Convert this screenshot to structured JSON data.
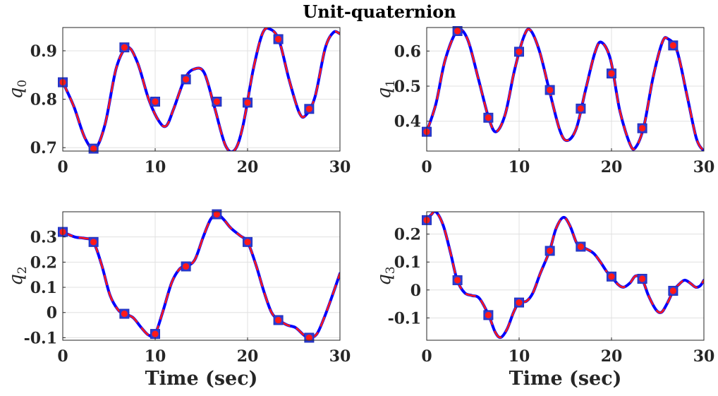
{
  "figure": {
    "title": "Unit-quaternion"
  },
  "colors": {
    "solid": "#0000ff",
    "dashed": "#ff1a1a",
    "marker_edge": "#2b3bd6",
    "marker_fill": "#ff1a1a",
    "grid": "#e0e0e0",
    "axis": "#262626"
  },
  "chart_data": [
    {
      "type": "line",
      "ylabel": "q",
      "ylabel_sub": "0",
      "xlabel": "",
      "xlim": [
        0,
        30
      ],
      "ylim": [
        0.693,
        0.948
      ],
      "xticks": [
        0,
        10,
        20,
        30
      ],
      "xtick_labels": [
        "0",
        "10",
        "20",
        "30"
      ],
      "yticks": [
        0.7,
        0.8,
        0.9
      ],
      "ytick_labels": [
        "0.7",
        "0.8",
        "0.9"
      ],
      "grid": true,
      "curve_x": [
        0,
        1.2,
        2.4,
        3.5,
        4.6,
        5.8,
        7.0,
        8.1,
        9.3,
        10.4,
        11.2,
        12.0,
        13.2,
        14.2,
        15.3,
        16.4,
        17.6,
        18.6,
        19.5,
        20.6,
        21.6,
        22.4,
        23.4,
        24.5,
        25.6,
        26.3,
        27.3,
        28.4,
        29.3,
        30
      ],
      "curve_y": [
        0.835,
        0.785,
        0.72,
        0.698,
        0.75,
        0.865,
        0.907,
        0.875,
        0.8,
        0.755,
        0.745,
        0.78,
        0.842,
        0.862,
        0.855,
        0.785,
        0.705,
        0.695,
        0.745,
        0.86,
        0.935,
        0.945,
        0.922,
        0.84,
        0.772,
        0.767,
        0.805,
        0.905,
        0.938,
        0.935
      ],
      "marker_x": [
        0,
        3.33,
        6.67,
        10,
        13.33,
        16.67,
        20,
        23.33,
        26.67
      ],
      "marker_y": [
        0.835,
        0.698,
        0.907,
        0.795,
        0.841,
        0.795,
        0.793,
        0.924,
        0.78
      ]
    },
    {
      "type": "line",
      "ylabel": "q",
      "ylabel_sub": "1",
      "xlabel": "",
      "xlim": [
        0,
        30
      ],
      "ylim": [
        0.315,
        0.667
      ],
      "xticks": [
        0,
        10,
        20,
        30
      ],
      "xtick_labels": [
        "0",
        "10",
        "20",
        "30"
      ],
      "yticks": [
        0.4,
        0.5,
        0.6
      ],
      "ytick_labels": [
        "0.4",
        "0.5",
        "0.6"
      ],
      "grid": true,
      "curve_x": [
        0,
        1.0,
        2.0,
        3.3,
        4.4,
        5.6,
        6.7,
        7.5,
        8.5,
        9.5,
        10.5,
        11.2,
        12.2,
        13.3,
        14.4,
        15.2,
        16.2,
        17.2,
        18.2,
        18.9,
        19.9,
        20.9,
        22.0,
        22.6,
        23.5,
        24.5,
        25.5,
        26.1,
        27.1,
        28.2,
        29.2,
        30
      ],
      "curve_y": [
        0.37,
        0.45,
        0.575,
        0.657,
        0.635,
        0.52,
        0.41,
        0.37,
        0.42,
        0.545,
        0.64,
        0.66,
        0.6,
        0.485,
        0.375,
        0.345,
        0.38,
        0.49,
        0.595,
        0.625,
        0.575,
        0.43,
        0.335,
        0.325,
        0.385,
        0.525,
        0.625,
        0.635,
        0.6,
        0.47,
        0.35,
        0.315
      ],
      "marker_x": [
        0,
        3.33,
        6.67,
        10,
        13.33,
        16.67,
        20,
        23.33,
        26.67
      ],
      "marker_y": [
        0.37,
        0.657,
        0.41,
        0.598,
        0.489,
        0.436,
        0.536,
        0.38,
        0.616
      ]
    },
    {
      "type": "line",
      "ylabel": "q",
      "ylabel_sub": "2",
      "xlabel": "Time (sec)",
      "xlim": [
        0,
        30
      ],
      "ylim": [
        -0.11,
        0.4
      ],
      "xticks": [
        0,
        10,
        20,
        30
      ],
      "xtick_labels": [
        "0",
        "10",
        "20",
        "30"
      ],
      "yticks": [
        -0.1,
        0,
        0.1,
        0.2,
        0.3
      ],
      "ytick_labels": [
        "-0.1",
        "0",
        "0.1",
        "0.2",
        "0.3"
      ],
      "grid": true,
      "curve_x": [
        0,
        1.3,
        2.3,
        3.3,
        4.2,
        5.1,
        6.0,
        6.7,
        7.6,
        8.5,
        9.3,
        10.0,
        10.8,
        11.8,
        12.7,
        13.4,
        14.3,
        15.2,
        16.0,
        16.7,
        17.4,
        18.2,
        19.2,
        20.0,
        20.9,
        21.8,
        22.6,
        23.4,
        24.3,
        25.2,
        26.1,
        26.7,
        27.5,
        28.3,
        29.2,
        30
      ],
      "curve_y": [
        0.32,
        0.3,
        0.295,
        0.28,
        0.19,
        0.07,
        0.01,
        -0.005,
        -0.02,
        -0.06,
        -0.09,
        -0.085,
        0.0,
        0.12,
        0.175,
        0.183,
        0.21,
        0.3,
        0.37,
        0.39,
        0.37,
        0.335,
        0.305,
        0.28,
        0.19,
        0.08,
        0.0,
        -0.03,
        -0.05,
        -0.06,
        -0.09,
        -0.1,
        -0.085,
        -0.02,
        0.07,
        0.155
      ],
      "marker_x": [
        0,
        3.33,
        6.67,
        10,
        13.33,
        16.67,
        20,
        23.33,
        26.67
      ],
      "marker_y": [
        0.32,
        0.28,
        -0.005,
        -0.085,
        0.183,
        0.39,
        0.28,
        -0.03,
        -0.1
      ]
    },
    {
      "type": "line",
      "ylabel": "q",
      "ylabel_sub": "3",
      "xlabel": "Time (sec)",
      "xlim": [
        0,
        30
      ],
      "ylim": [
        -0.18,
        0.28
      ],
      "xticks": [
        0,
        10,
        20,
        30
      ],
      "xtick_labels": [
        "0",
        "10",
        "20",
        "30"
      ],
      "yticks": [
        -0.1,
        0,
        0.1,
        0.2
      ],
      "ytick_labels": [
        "-0.1",
        "0",
        "0.1",
        "0.2"
      ],
      "grid": true,
      "curve_x": [
        0,
        0.5,
        1.0,
        1.8,
        2.6,
        3.3,
        4.1,
        4.9,
        5.7,
        6.7,
        7.4,
        8.0,
        8.7,
        9.4,
        10.0,
        10.8,
        11.5,
        12.3,
        13.3,
        14.0,
        14.8,
        15.5,
        16.2,
        16.7,
        17.4,
        18.1,
        18.8,
        19.5,
        20.0,
        20.7,
        21.3,
        22.0,
        22.6,
        23.3,
        24.0,
        24.8,
        25.4,
        26.0,
        26.7,
        27.3,
        27.9,
        28.5,
        29.1,
        29.6,
        30
      ],
      "curve_y": [
        0.25,
        0.27,
        0.28,
        0.23,
        0.13,
        0.035,
        -0.01,
        -0.02,
        -0.03,
        -0.09,
        -0.15,
        -0.17,
        -0.14,
        -0.08,
        -0.045,
        -0.04,
        -0.01,
        0.06,
        0.14,
        0.22,
        0.26,
        0.23,
        0.17,
        0.155,
        0.145,
        0.13,
        0.1,
        0.065,
        0.048,
        0.02,
        0.01,
        0.025,
        0.05,
        0.04,
        -0.02,
        -0.07,
        -0.08,
        -0.05,
        -0.003,
        0.02,
        0.035,
        0.025,
        0.01,
        0.015,
        0.035
      ],
      "marker_x": [
        0,
        3.33,
        6.67,
        10,
        13.33,
        16.67,
        20,
        23.33,
        26.67
      ],
      "marker_y": [
        0.25,
        0.035,
        -0.09,
        -0.045,
        0.14,
        0.155,
        0.048,
        0.04,
        -0.003
      ]
    }
  ]
}
